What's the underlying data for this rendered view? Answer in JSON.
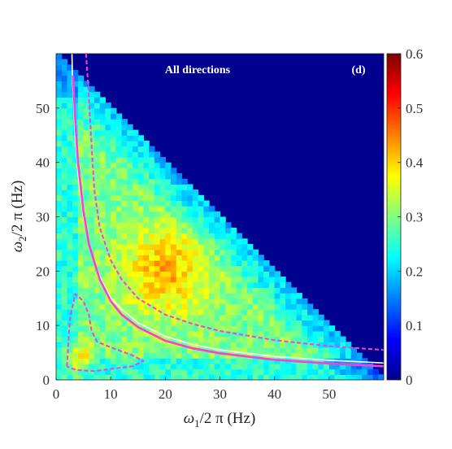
{
  "chart_data": {
    "type": "heatmap",
    "panel_label": "(d)",
    "annotation": "All directions",
    "xlabel": {
      "symbol": "ω",
      "sub": "1",
      "rest": "/2 π (Hz)"
    },
    "ylabel": {
      "symbol": "ω",
      "sub": "2",
      "rest": "/2 π (Hz)"
    },
    "xlim": [
      0,
      60
    ],
    "ylim": [
      0,
      60
    ],
    "x_ticks": [
      0,
      10,
      20,
      30,
      40,
      50
    ],
    "y_ticks": [
      0,
      10,
      20,
      30,
      40,
      50
    ],
    "colorbar": {
      "range": [
        0,
        0.6
      ],
      "ticks": [
        "0",
        "0.1",
        "0.2",
        "0.3",
        "0.4",
        "0.5",
        "0.6"
      ],
      "colormap": "jet"
    },
    "background_color": "#00008f",
    "heatmap_description": {
      "domain": "triangular region w1 + w2 <= 60",
      "peak": {
        "x": 20,
        "y": 20,
        "value": 0.42
      },
      "typical_value": 0.3
    },
    "series": [
      {
        "style": "solid",
        "color": "#ffffff",
        "points": [
          [
            2.9,
            60
          ],
          [
            3,
            55
          ],
          [
            3.5,
            45
          ],
          [
            4,
            38
          ],
          [
            5,
            30
          ],
          [
            6,
            25
          ],
          [
            8,
            19
          ],
          [
            10,
            15
          ],
          [
            12,
            13
          ],
          [
            15,
            10.5
          ],
          [
            20,
            8
          ],
          [
            25,
            6.5
          ],
          [
            30,
            5.5
          ],
          [
            40,
            4.3
          ],
          [
            50,
            3.6
          ],
          [
            58,
            3.2
          ],
          [
            60,
            3.1
          ]
        ]
      },
      {
        "style": "solid",
        "color": "#ff3bd8",
        "points": [
          [
            3.1,
            56
          ],
          [
            3.5,
            48
          ],
          [
            4,
            40
          ],
          [
            5,
            31
          ],
          [
            6,
            25
          ],
          [
            8,
            18.5
          ],
          [
            10,
            14.5
          ],
          [
            12,
            12
          ],
          [
            15,
            9.7
          ],
          [
            20,
            7.2
          ],
          [
            25,
            5.8
          ],
          [
            30,
            4.9
          ],
          [
            40,
            3.7
          ],
          [
            50,
            3
          ],
          [
            60,
            2.5
          ]
        ]
      },
      {
        "style": "dashed",
        "color": "#ff3bd8",
        "points": [
          [
            5.5,
            60
          ],
          [
            6,
            52
          ],
          [
            6.5,
            43
          ],
          [
            7,
            35
          ],
          [
            8,
            28
          ],
          [
            10,
            22
          ],
          [
            12,
            18.5
          ],
          [
            15,
            15
          ],
          [
            20,
            12
          ],
          [
            25,
            10.3
          ],
          [
            30,
            9
          ],
          [
            40,
            7.3
          ],
          [
            50,
            6.2
          ],
          [
            60,
            5.5
          ]
        ]
      },
      {
        "style": "dashed",
        "color": "#ff3bd8",
        "points": [
          [
            2,
            2.5
          ],
          [
            2.2,
            6
          ],
          [
            2.5,
            11
          ],
          [
            3.5,
            15.8
          ],
          [
            5,
            14.5
          ],
          [
            6,
            12
          ],
          [
            6.5,
            9
          ],
          [
            7.5,
            7
          ],
          [
            10,
            6
          ],
          [
            14,
            4.5
          ],
          [
            16,
            3.5
          ],
          [
            14,
            2.5
          ],
          [
            10,
            2
          ],
          [
            7,
            1.6
          ],
          [
            4,
            1.8
          ],
          [
            2.5,
            2.2
          ],
          [
            2,
            2.5
          ]
        ]
      }
    ]
  }
}
